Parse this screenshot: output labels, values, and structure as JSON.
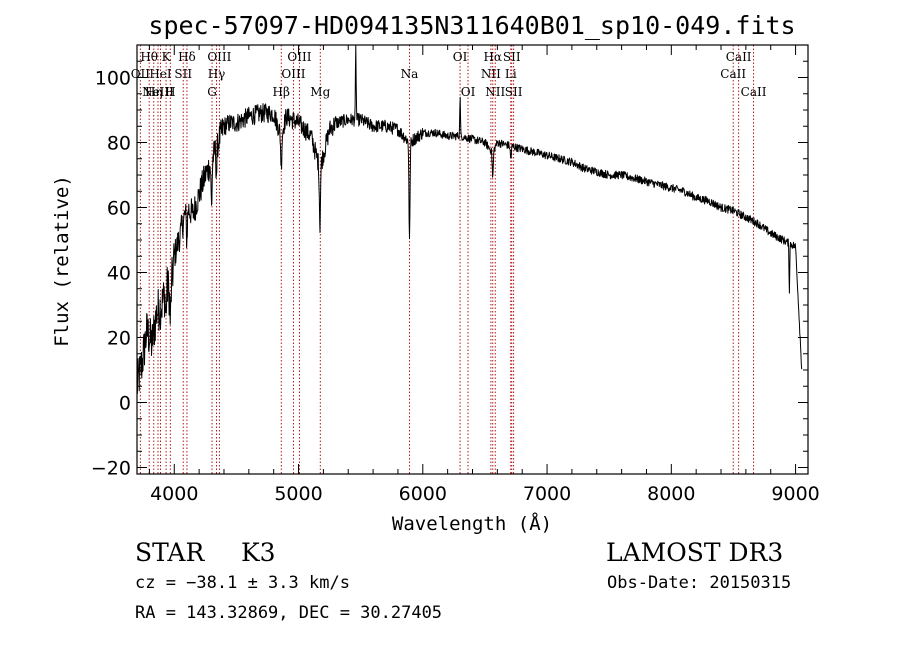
{
  "chart_data": {
    "type": "line",
    "title": "spec-57097-HD094135N311640B01_sp10-049.fits",
    "xlabel": "Wavelength (Å)",
    "ylabel": "Flux (relative)",
    "xlim": [
      3700,
      9100
    ],
    "ylim": [
      -22,
      110
    ],
    "xticks": [
      4000,
      5000,
      6000,
      7000,
      8000,
      9000
    ],
    "yticks": [
      -20,
      0,
      20,
      40,
      60,
      80,
      100
    ],
    "tick_labels_x": [
      "4000",
      "5000",
      "6000",
      "7000",
      "8000",
      "9000"
    ],
    "tick_labels_y": [
      "−20",
      "0",
      "20",
      "40",
      "60",
      "80",
      "100"
    ],
    "spectrum_anchors": [
      [
        3700,
        5
      ],
      [
        3740,
        12
      ],
      [
        3780,
        22
      ],
      [
        3820,
        18
      ],
      [
        3860,
        28
      ],
      [
        3900,
        30
      ],
      [
        3940,
        36
      ],
      [
        3970,
        33
      ],
      [
        4000,
        45
      ],
      [
        4050,
        52
      ],
      [
        4100,
        60
      ],
      [
        4150,
        58
      ],
      [
        4200,
        64
      ],
      [
        4250,
        70
      ],
      [
        4300,
        74
      ],
      [
        4350,
        80
      ],
      [
        4400,
        85
      ],
      [
        4450,
        86
      ],
      [
        4500,
        86
      ],
      [
        4600,
        88
      ],
      [
        4700,
        89
      ],
      [
        4800,
        89
      ],
      [
        4861,
        82
      ],
      [
        4900,
        88
      ],
      [
        5000,
        86
      ],
      [
        5100,
        82
      ],
      [
        5172,
        72
      ],
      [
        5250,
        84
      ],
      [
        5300,
        86
      ],
      [
        5400,
        87
      ],
      [
        5500,
        87
      ],
      [
        5600,
        85
      ],
      [
        5700,
        85
      ],
      [
        5800,
        84
      ],
      [
        5893,
        80
      ],
      [
        6000,
        83
      ],
      [
        6100,
        83
      ],
      [
        6200,
        82
      ],
      [
        6300,
        82
      ],
      [
        6400,
        81
      ],
      [
        6500,
        80
      ],
      [
        6563,
        77
      ],
      [
        6600,
        80
      ],
      [
        6700,
        79
      ],
      [
        6800,
        78
      ],
      [
        6900,
        77
      ],
      [
        7000,
        76
      ],
      [
        7100,
        75
      ],
      [
        7200,
        74
      ],
      [
        7300,
        72
      ],
      [
        7400,
        71
      ],
      [
        7500,
        70
      ],
      [
        7600,
        70
      ],
      [
        7700,
        69
      ],
      [
        7800,
        68
      ],
      [
        7900,
        67
      ],
      [
        8000,
        66
      ],
      [
        8100,
        65
      ],
      [
        8200,
        63
      ],
      [
        8300,
        62
      ],
      [
        8400,
        60
      ],
      [
        8500,
        59
      ],
      [
        8600,
        57
      ],
      [
        8700,
        55
      ],
      [
        8800,
        52
      ],
      [
        8900,
        50
      ],
      [
        9000,
        48
      ],
      [
        9050,
        10
      ]
    ],
    "absorption_dips": [
      [
        3933,
        8
      ],
      [
        3968,
        8
      ],
      [
        4101,
        10
      ],
      [
        4300,
        14
      ],
      [
        4340,
        8
      ],
      [
        4861,
        10
      ],
      [
        5172,
        18
      ],
      [
        5893,
        30
      ],
      [
        6563,
        8
      ],
      [
        6708,
        4
      ]
    ],
    "spike_features": [
      [
        5461,
        22
      ],
      [
        6300,
        12
      ],
      [
        8950,
        -15
      ]
    ],
    "emission_lines": [
      {
        "wave": 3798,
        "label": "Hθ",
        "row": 0
      },
      {
        "wave": 3727,
        "label": "OII",
        "row": 1
      },
      {
        "wave": 3835,
        "label": "Hη",
        "row": 2
      },
      {
        "wave": 3869,
        "label": "NeIII",
        "row": 2
      },
      {
        "wave": 3889,
        "label": "HeI",
        "row": 1
      },
      {
        "wave": 3934,
        "label": "K",
        "row": 0
      },
      {
        "wave": 3968,
        "label": "H",
        "row": 2
      },
      {
        "wave": 4072,
        "label": "SII",
        "row": 1
      },
      {
        "wave": 4102,
        "label": "Hδ",
        "row": 0
      },
      {
        "wave": 4304,
        "label": "G",
        "row": 2
      },
      {
        "wave": 4340,
        "label": "Hγ",
        "row": 1
      },
      {
        "wave": 4363,
        "label": "OIII",
        "row": 0
      },
      {
        "wave": 4861,
        "label": "Hβ",
        "row": 2
      },
      {
        "wave": 4959,
        "label": "OIII",
        "row": 1
      },
      {
        "wave": 5007,
        "label": "OIII",
        "row": 0
      },
      {
        "wave": 5175,
        "label": "Mg",
        "row": 2
      },
      {
        "wave": 5893,
        "label": "Na",
        "row": 1
      },
      {
        "wave": 6300,
        "label": "OI",
        "row": 0
      },
      {
        "wave": 6364,
        "label": "OI",
        "row": 2
      },
      {
        "wave": 6548,
        "label": "NII",
        "row": 1
      },
      {
        "wave": 6563,
        "label": "Hα",
        "row": 0
      },
      {
        "wave": 6583,
        "label": "NII",
        "row": 2
      },
      {
        "wave": 6708,
        "label": "Li",
        "row": 1
      },
      {
        "wave": 6716,
        "label": "SII",
        "row": 0
      },
      {
        "wave": 6731,
        "label": "SII",
        "row": 2
      },
      {
        "wave": 8498,
        "label": "CaII",
        "row": 1
      },
      {
        "wave": 8542,
        "label": "CaII",
        "row": 0
      },
      {
        "wave": 8662,
        "label": "CaII",
        "row": 2
      }
    ]
  },
  "info": {
    "object_class": "STAR",
    "subclass": "K3",
    "survey": "LAMOST DR3",
    "redshift": "cz = −38.1 ± 3.3 km/s",
    "obs_date": "Obs-Date: 20150315",
    "coords": "RA = 143.32869, DEC =  30.27405"
  },
  "colors": {
    "spectrum": "#000000",
    "line_marker": "#b00000",
    "axes": "#000000"
  }
}
